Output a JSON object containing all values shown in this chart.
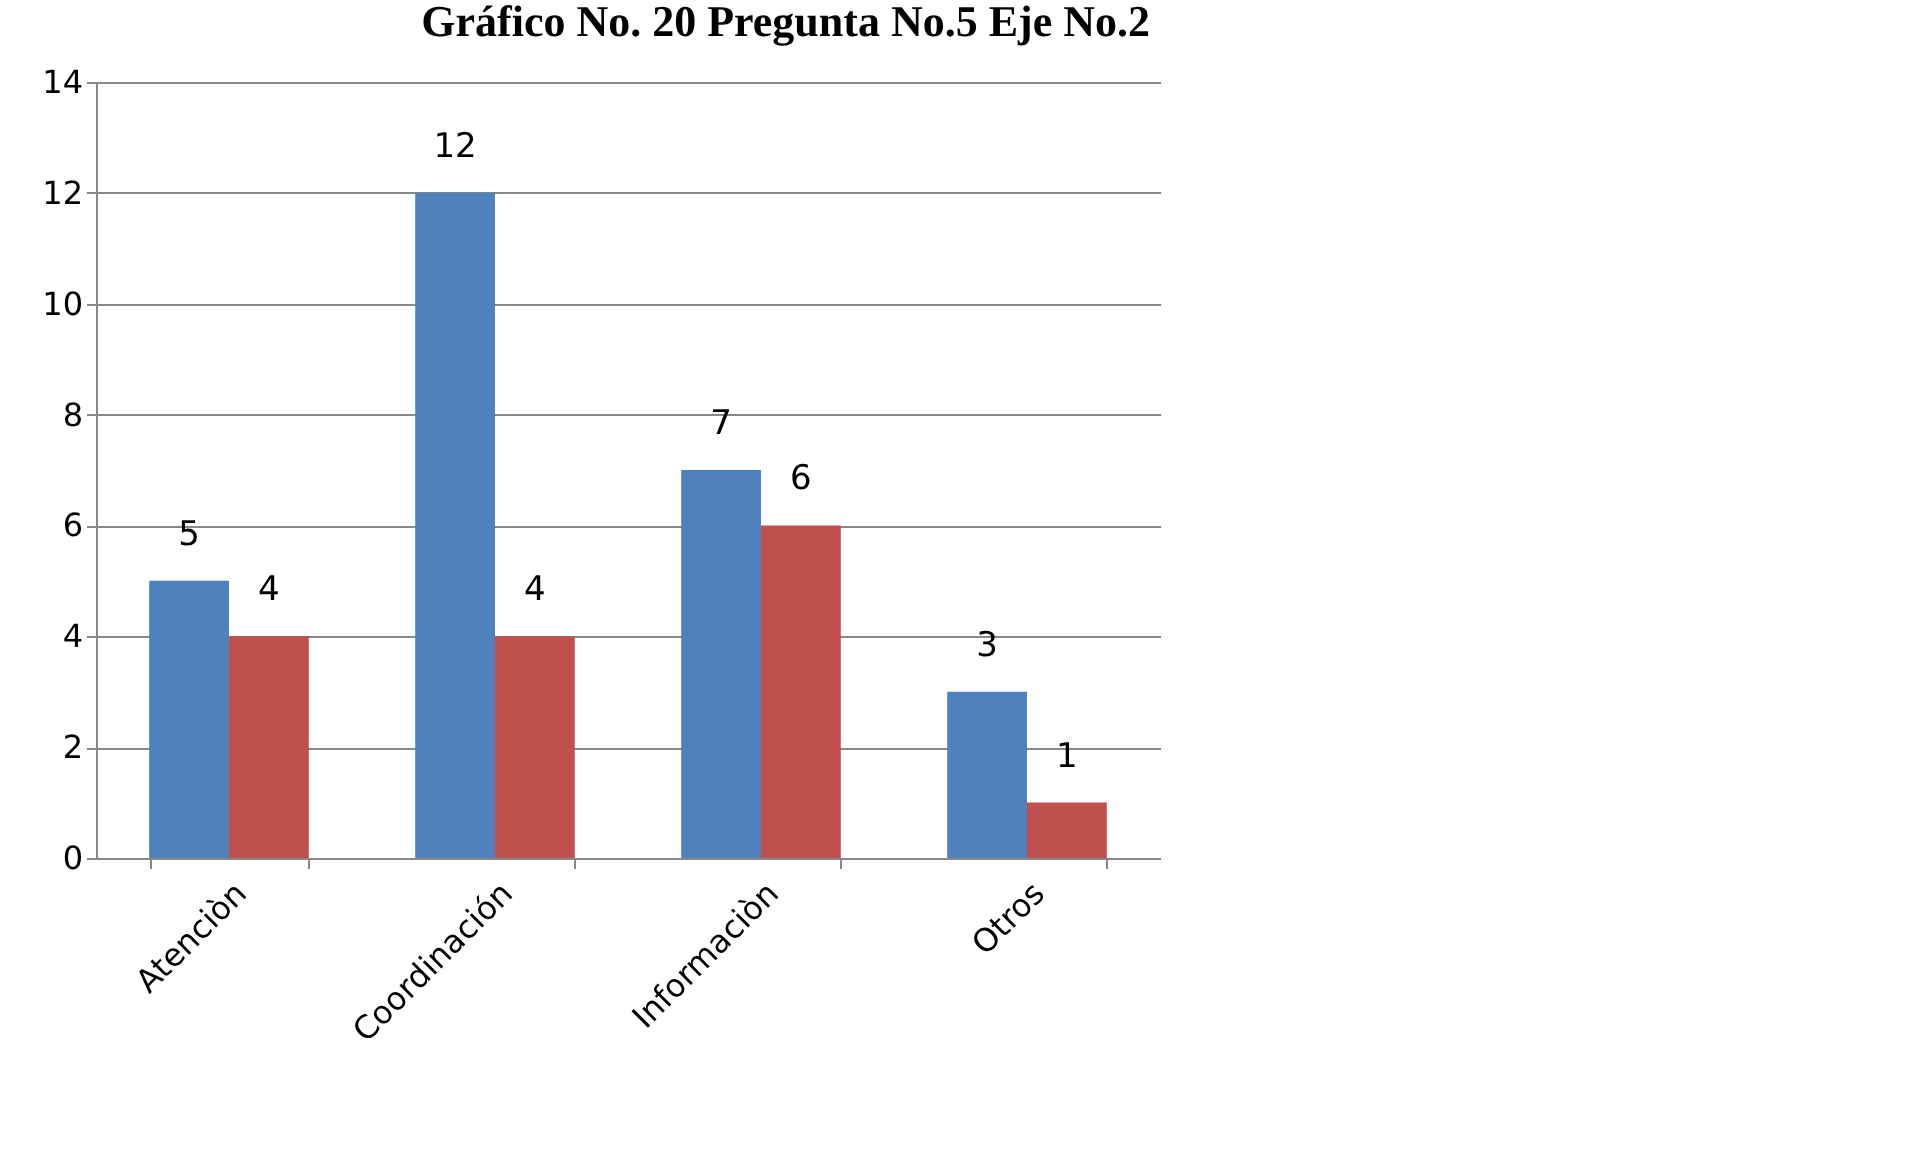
{
  "chart_data": {
    "type": "bar",
    "title": "Gráfico No. 20 Pregunta No.5 Eje No.2",
    "categories": [
      "Atenciòn",
      "Coordinación",
      "Informaciòn",
      "Otros"
    ],
    "series": [
      {
        "color": "#4f81bd",
        "values": [
          5,
          12,
          7,
          3
        ]
      },
      {
        "color": "#c0504d",
        "values": [
          4,
          4,
          6,
          1
        ]
      }
    ],
    "ylim": [
      0,
      14
    ],
    "yticks": [
      0,
      2,
      4,
      6,
      8,
      10,
      12,
      14
    ],
    "grid": "y",
    "data_labels": true
  }
}
